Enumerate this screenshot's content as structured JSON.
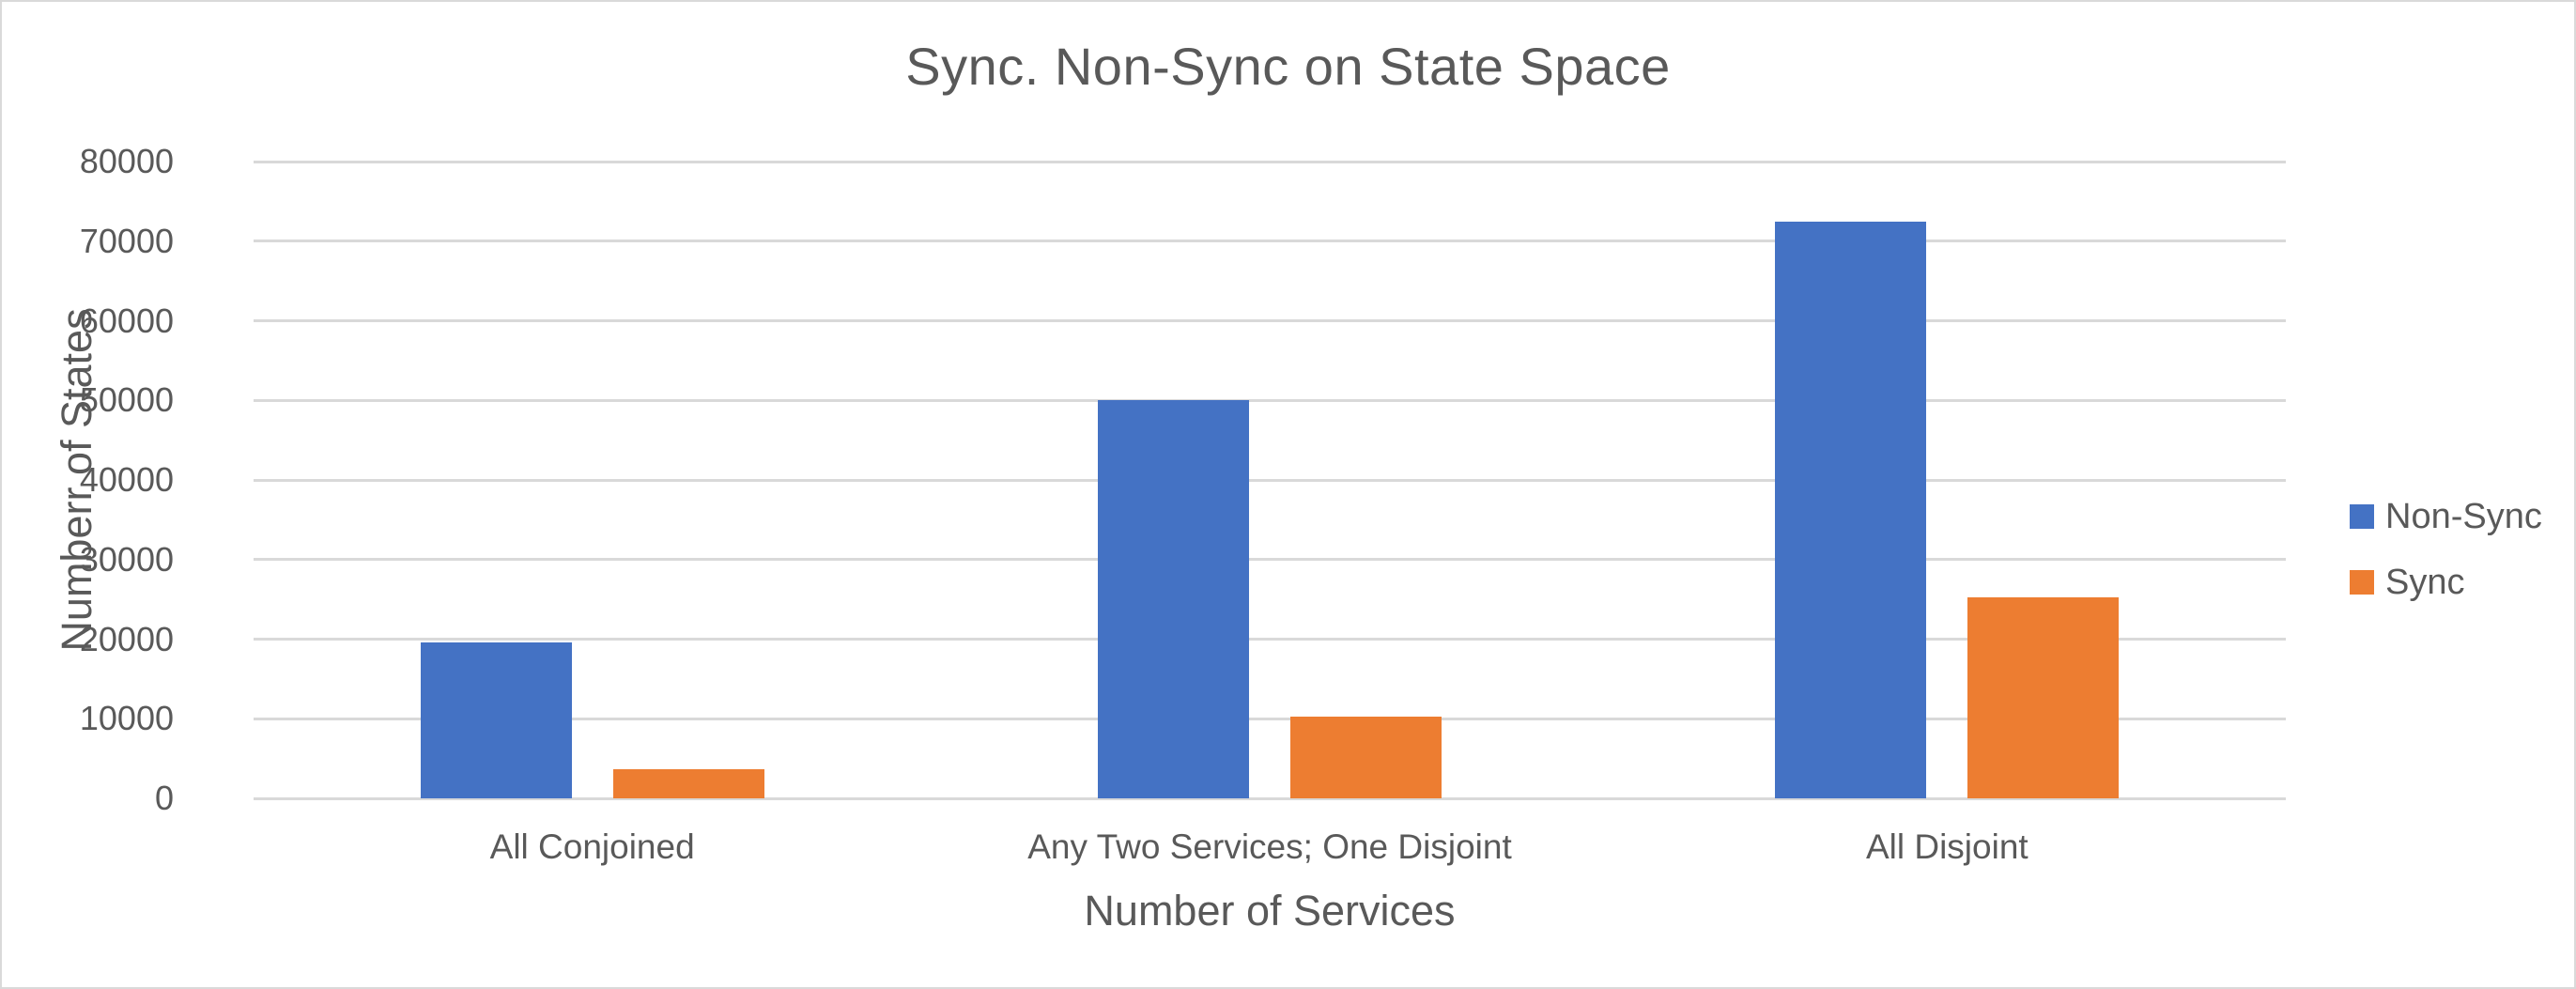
{
  "chart_data": {
    "type": "bar",
    "title": "Sync. Non-Sync on State Space",
    "categories": [
      "All Conjoined",
      "Any Two Services; One Disjoint",
      "All Disjoint"
    ],
    "series": [
      {
        "name": "Non-Sync",
        "color": "#4472C4",
        "values": [
          19600,
          50000,
          72500
        ]
      },
      {
        "name": "Sync",
        "color": "#ED7D31",
        "values": [
          3700,
          10300,
          25300
        ]
      }
    ],
    "xlabel": "Number of Services",
    "ylabel": "Numberr of States",
    "ylim": [
      0,
      80000
    ],
    "ytick_step": 10000,
    "ytick_labels": [
      "0",
      "10000",
      "20000",
      "30000",
      "40000",
      "50000",
      "60000",
      "70000",
      "80000"
    ],
    "grid": true,
    "legend_position": "right",
    "colors": {
      "text": "#595959",
      "gridline": "#D9D9D9",
      "background": "#FFFFFF",
      "border": "#D9D9D9"
    }
  }
}
